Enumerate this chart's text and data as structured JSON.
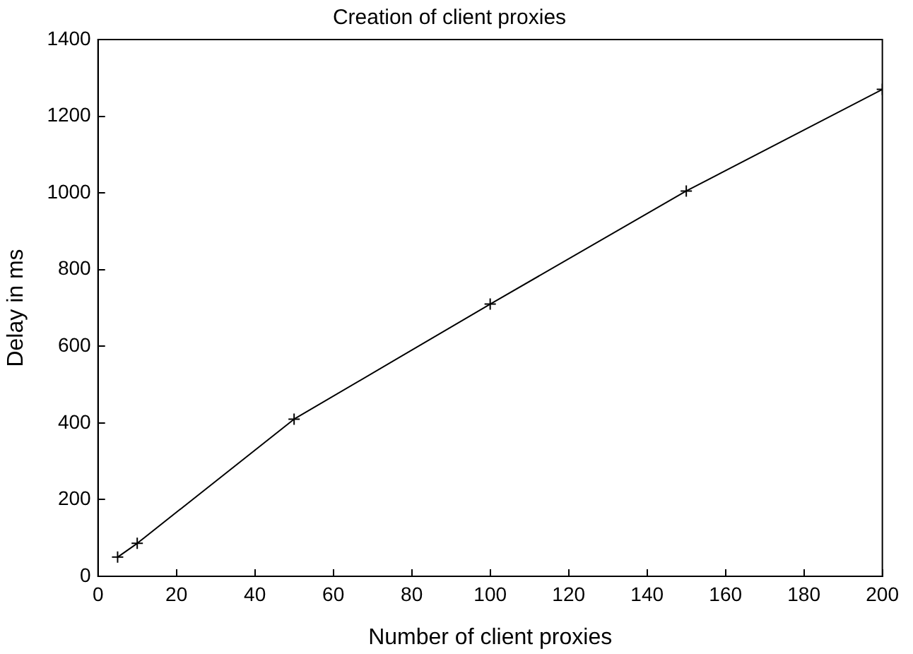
{
  "chart_data": {
    "type": "line",
    "title": "Creation of client proxies",
    "xlabel": "Number of client proxies",
    "ylabel": "Delay in ms",
    "x": [
      5,
      10,
      50,
      100,
      150,
      200
    ],
    "series": [
      {
        "color": "#000000",
        "values": [
          50,
          86,
          410,
          710,
          1005,
          1270
        ]
      }
    ],
    "xlim": [
      0,
      200
    ],
    "xticks": [
      0,
      20,
      40,
      60,
      80,
      100,
      120,
      140,
      160,
      180,
      200
    ],
    "ylim": [
      0,
      1400
    ],
    "yticks": [
      0,
      200,
      400,
      600,
      800,
      1000,
      1200,
      1400
    ],
    "grid": false,
    "legend": false,
    "marker": "cross",
    "line_style": "solid"
  }
}
